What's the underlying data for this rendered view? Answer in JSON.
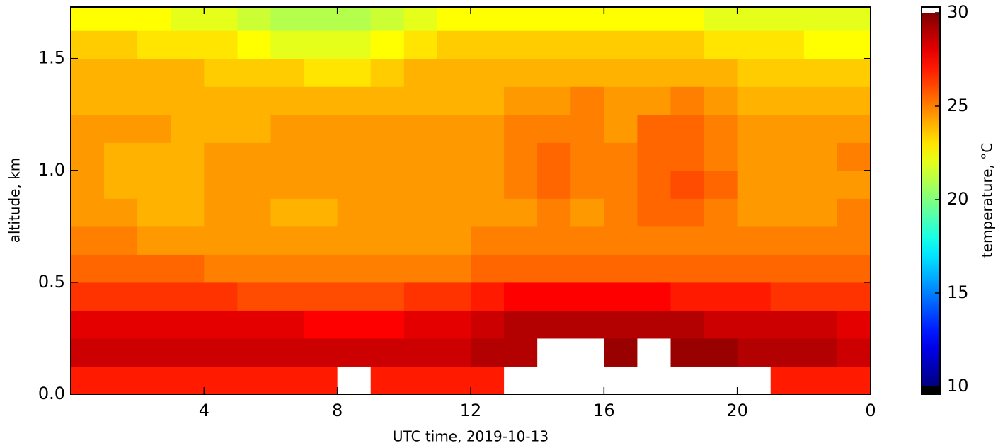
{
  "chart_data": {
    "type": "heatmap",
    "xlabel": "UTC time,  2019-10-13",
    "ylabel": "altitude, km",
    "colorbar_label": "temperature, °C",
    "colormap": "jet",
    "x": [
      0.5,
      1.5,
      2.5,
      3.5,
      4.5,
      5.5,
      6.5,
      7.5,
      8.5,
      9.5,
      10.5,
      11.5,
      12.5,
      13.5,
      14.5,
      15.5,
      16.5,
      17.5,
      18.5,
      19.5,
      20.5,
      21.5,
      22.5,
      23.5
    ],
    "y": [
      0.0625,
      0.1875,
      0.3125,
      0.4375,
      0.5625,
      0.6875,
      0.8125,
      0.9375,
      1.0625,
      1.1875,
      1.3125,
      1.4375,
      1.5625,
      1.6875
    ],
    "z": [
      [
        27,
        27,
        27,
        27,
        27,
        27,
        27,
        27,
        31,
        27,
        27,
        27,
        27,
        31,
        31,
        31,
        31,
        31,
        31,
        31,
        31,
        27,
        27,
        27
      ],
      [
        28.5,
        28.5,
        28.5,
        28.5,
        28.5,
        28.5,
        28.5,
        28.5,
        28.5,
        28.5,
        28.5,
        28.5,
        29,
        29,
        31,
        31,
        29.5,
        31,
        29.5,
        29.5,
        29,
        29,
        29,
        28.5
      ],
      [
        28,
        28,
        28,
        28,
        28,
        28,
        28,
        27.5,
        27.5,
        27.5,
        28,
        28,
        28.5,
        29,
        29,
        29,
        29,
        29,
        29,
        28.5,
        28.5,
        28.5,
        28.5,
        28
      ],
      [
        26.5,
        26.5,
        26.5,
        26.5,
        26.5,
        26,
        26,
        26,
        26,
        26,
        26.5,
        26.5,
        27,
        27.5,
        27.5,
        27.5,
        27.5,
        27.5,
        27,
        27,
        27,
        26.5,
        26.5,
        26.5
      ],
      [
        25.5,
        25.5,
        25.5,
        25.5,
        25,
        25,
        25,
        25,
        25,
        25,
        25,
        25,
        25.5,
        25.5,
        25.5,
        25.5,
        25.5,
        25.5,
        25.5,
        25.5,
        25.5,
        25.5,
        25.5,
        25.5
      ],
      [
        25,
        25,
        24.5,
        24.5,
        24.5,
        24.5,
        24.5,
        24.5,
        24.5,
        24.5,
        24.5,
        24.5,
        25,
        25,
        25,
        25,
        25,
        25,
        25,
        25,
        25,
        25,
        25,
        25
      ],
      [
        24.5,
        24.5,
        24,
        24,
        24.5,
        24.5,
        24,
        24,
        24.5,
        24.5,
        24.5,
        24.5,
        24.5,
        24.5,
        25,
        24.5,
        25,
        25.5,
        25.5,
        25,
        24.5,
        24.5,
        24.5,
        25
      ],
      [
        24.5,
        24,
        24,
        24,
        24.5,
        24.5,
        24.5,
        24.5,
        24.5,
        24.5,
        24.5,
        24.5,
        24.5,
        25,
        25.5,
        25,
        25,
        25.5,
        26,
        25.5,
        24.5,
        24.5,
        24.5,
        24.5
      ],
      [
        24.5,
        24,
        24,
        24,
        24.5,
        24.5,
        24.5,
        24.5,
        24.5,
        24.5,
        24.5,
        24.5,
        24.5,
        25,
        25.5,
        25,
        25,
        25.5,
        25.5,
        25,
        24.5,
        24.5,
        24.5,
        25
      ],
      [
        24.5,
        24.5,
        24.5,
        24,
        24,
        24,
        24.5,
        24.5,
        24.5,
        24.5,
        24.5,
        24.5,
        24.5,
        25,
        25,
        25,
        24.5,
        25.5,
        25.5,
        25,
        24.5,
        24.5,
        24.5,
        24.5
      ],
      [
        24,
        24,
        24,
        24,
        24,
        24,
        24,
        24,
        24,
        24,
        24,
        24,
        24,
        24.5,
        24.5,
        25,
        24.5,
        24.5,
        25,
        24.5,
        24,
        24,
        24,
        24
      ],
      [
        24,
        24,
        24,
        24,
        23.5,
        23.5,
        23.5,
        23,
        23,
        23.5,
        24,
        24,
        24,
        24,
        24,
        24,
        24,
        24,
        24,
        24,
        23.5,
        23.5,
        23.5,
        23.5
      ],
      [
        23.5,
        23.5,
        23,
        23,
        23,
        22.5,
        22,
        22,
        22,
        22.5,
        23,
        23.5,
        23.5,
        23.5,
        23.5,
        23.5,
        23.5,
        23.5,
        23.5,
        23,
        23,
        23,
        22.5,
        22.5
      ],
      [
        22.5,
        22.5,
        22.5,
        22,
        22,
        21.5,
        21,
        21,
        21,
        21.5,
        22,
        22.5,
        22.5,
        22.5,
        22.5,
        22.5,
        22.5,
        22.5,
        22.5,
        22,
        22,
        22,
        22,
        22
      ]
    ],
    "xlim": [
      0,
      24
    ],
    "xticks": [
      4,
      8,
      12,
      16,
      20,
      {
        "value": 24,
        "label": "0"
      }
    ],
    "ylim": [
      0,
      1.73
    ],
    "yticks": [
      {
        "value": 0,
        "label": "0.0"
      },
      0.5,
      {
        "value": 1,
        "label": "1.0"
      },
      1.5
    ],
    "clim": [
      10,
      30
    ],
    "cticks": [
      10,
      15,
      20,
      25,
      30
    ]
  }
}
